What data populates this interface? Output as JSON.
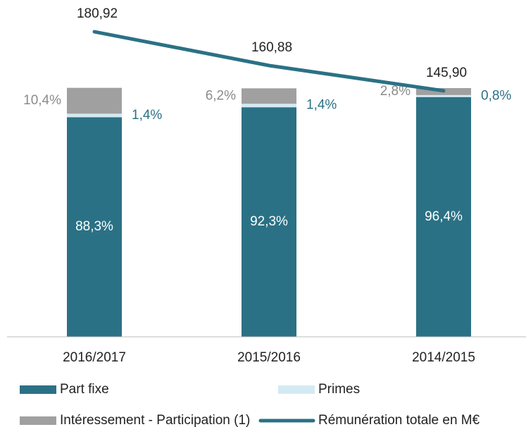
{
  "chart_data": {
    "type": "bar",
    "stacked": true,
    "categories": [
      "2016/2017",
      "2015/2016",
      "2014/2015"
    ],
    "series": [
      {
        "name": "Part fixe",
        "color": "#2b7185",
        "values": [
          88.3,
          92.3,
          96.4
        ],
        "value_labels": [
          "88,3%",
          "92,3%",
          "96,4%"
        ]
      },
      {
        "name": "Primes",
        "color": "#d4eaf2",
        "values": [
          1.4,
          1.4,
          0.8
        ],
        "value_labels": [
          "1,4%",
          "1,4%",
          "0,8%"
        ]
      },
      {
        "name": "Intéressement - Participation (1)",
        "color": "#a0a0a0",
        "values": [
          10.4,
          6.2,
          2.8
        ],
        "value_labels": [
          "10,4%",
          "6,2%",
          "2,8%"
        ]
      },
      {
        "name": "Rémunération totale en M€",
        "color": "#2b7185",
        "type": "line",
        "axis": "y2",
        "values": [
          180.92,
          160.88,
          145.9
        ],
        "value_labels": [
          "180,92",
          "160,88",
          "145,90"
        ]
      }
    ],
    "ylim": [
      0,
      100
    ],
    "y2lim": [
      0,
      147.5
    ],
    "grid": false
  }
}
